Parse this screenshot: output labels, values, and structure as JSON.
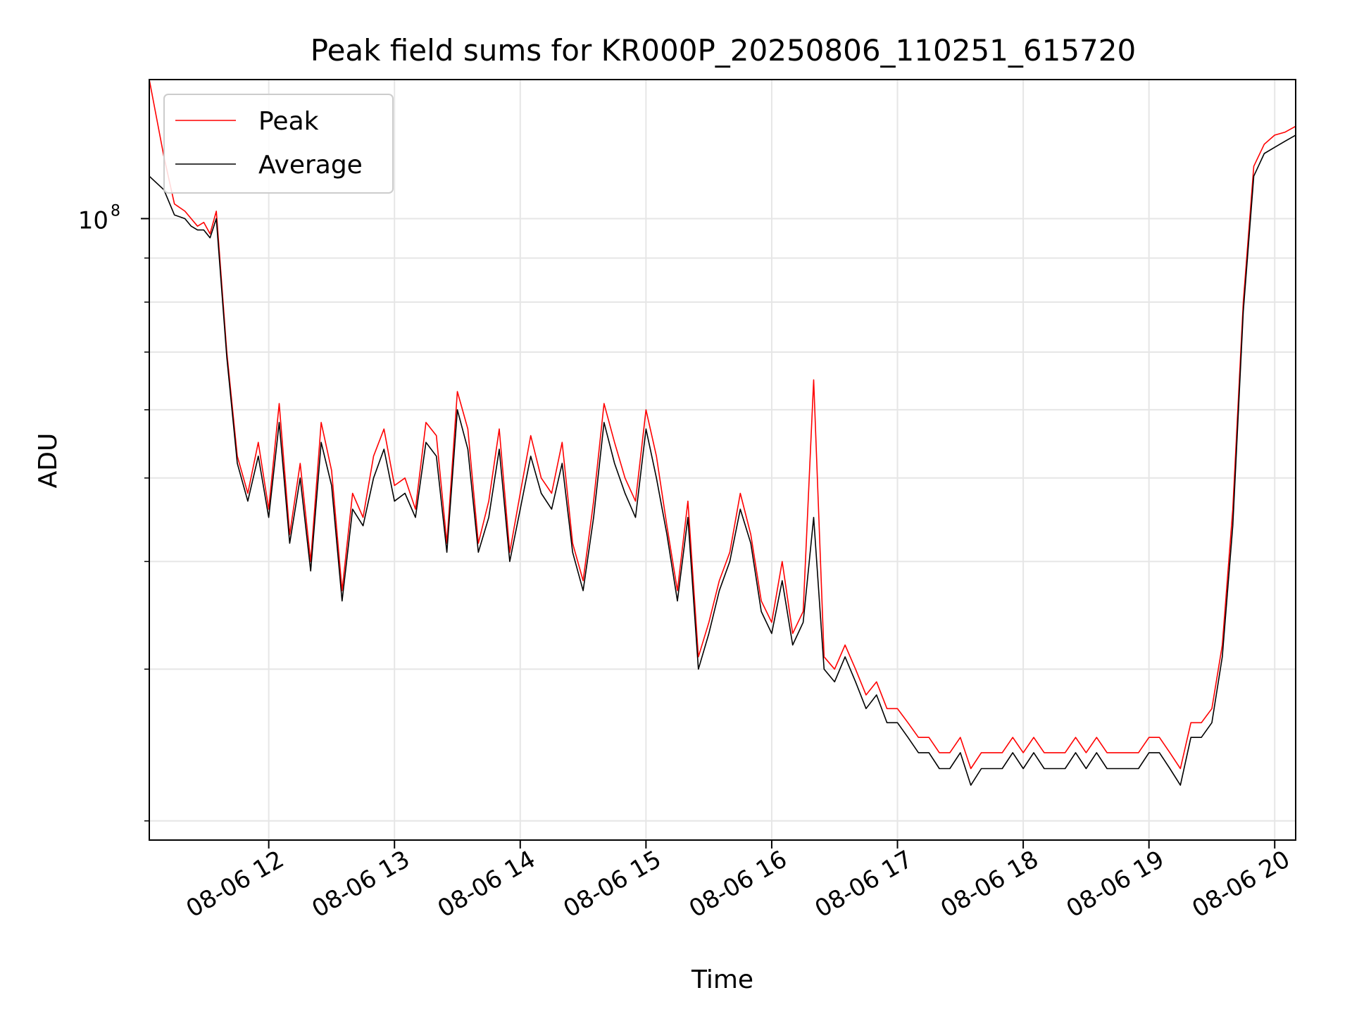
{
  "chart_data": {
    "type": "line",
    "title": "Peak field sums for KR000P_20250806_110251_615720",
    "xlabel": "Time",
    "ylabel": "ADU",
    "x_ticks": [
      "08-06 12",
      "08-06 13",
      "08-06 14",
      "08-06 15",
      "08-06 16",
      "08-06 17",
      "08-06 18",
      "08-06 19",
      "08-06 20"
    ],
    "y_ticks": [
      {
        "value": 100000000,
        "label": "10",
        "exponent": "8"
      }
    ],
    "y_scale": "log",
    "y_range": [
      19000000,
      145000000
    ],
    "grid": true,
    "legend_position": "upper-left",
    "colors": {
      "Peak": "#ff0000",
      "Average": "#000000"
    },
    "series": [
      {
        "name": "Peak",
        "x": [
          "11:03",
          "11:10",
          "11:15",
          "11:20",
          "11:23",
          "11:26",
          "11:29",
          "11:32",
          "11:35",
          "11:40",
          "11:45",
          "11:50",
          "11:55",
          "12:00",
          "12:05",
          "12:10",
          "12:15",
          "12:20",
          "12:25",
          "12:30",
          "12:35",
          "12:40",
          "12:45",
          "12:50",
          "12:55",
          "13:00",
          "13:05",
          "13:10",
          "13:15",
          "13:20",
          "13:25",
          "13:30",
          "13:35",
          "13:40",
          "13:45",
          "13:50",
          "13:55",
          "14:00",
          "14:05",
          "14:10",
          "14:15",
          "14:20",
          "14:25",
          "14:30",
          "14:35",
          "14:40",
          "14:45",
          "14:50",
          "14:55",
          "15:00",
          "15:05",
          "15:10",
          "15:15",
          "15:20",
          "15:25",
          "15:30",
          "15:35",
          "15:40",
          "15:45",
          "15:50",
          "15:55",
          "16:00",
          "16:05",
          "16:10",
          "16:15",
          "16:20",
          "16:25",
          "16:30",
          "16:35",
          "16:40",
          "16:45",
          "16:50",
          "16:55",
          "17:00",
          "17:05",
          "17:10",
          "17:15",
          "17:20",
          "17:25",
          "17:30",
          "17:35",
          "17:40",
          "17:45",
          "17:50",
          "17:55",
          "18:00",
          "18:05",
          "18:10",
          "18:15",
          "18:20",
          "18:25",
          "18:30",
          "18:35",
          "18:40",
          "18:45",
          "18:50",
          "18:55",
          "19:00",
          "19:05",
          "19:10",
          "19:15",
          "19:20",
          "19:25",
          "19:30",
          "19:35",
          "19:40",
          "19:45",
          "19:50",
          "19:55",
          "20:00",
          "20:05",
          "20:10"
        ],
        "values": [
          145,
          118,
          104,
          102,
          100,
          98,
          99,
          96,
          102,
          70,
          53,
          48,
          55,
          46,
          61,
          43,
          52,
          40,
          58,
          51,
          37,
          48,
          45,
          53,
          57,
          49,
          50,
          46,
          58,
          56,
          42,
          63,
          57,
          42,
          47,
          57,
          41,
          48,
          56,
          50,
          48,
          55,
          42,
          38,
          47,
          61,
          55,
          50,
          47,
          60,
          53,
          44,
          37,
          47,
          31,
          34,
          38,
          41,
          48,
          43,
          36,
          34,
          40,
          33,
          35,
          65,
          31,
          30,
          32,
          30,
          28,
          29,
          27,
          27,
          26,
          25,
          25,
          24,
          24,
          25,
          23,
          24,
          24,
          24,
          25,
          24,
          25,
          24,
          24,
          24,
          25,
          24,
          25,
          24,
          24,
          24,
          24,
          25,
          25,
          24,
          23,
          26,
          26,
          27,
          32,
          46,
          80,
          115,
          122,
          125,
          126,
          128
        ],
        "scale_note": "millions"
      },
      {
        "name": "Average",
        "x": [
          "11:03",
          "11:10",
          "11:15",
          "11:20",
          "11:23",
          "11:26",
          "11:29",
          "11:32",
          "11:35",
          "11:40",
          "11:45",
          "11:50",
          "11:55",
          "12:00",
          "12:05",
          "12:10",
          "12:15",
          "12:20",
          "12:25",
          "12:30",
          "12:35",
          "12:40",
          "12:45",
          "12:50",
          "12:55",
          "13:00",
          "13:05",
          "13:10",
          "13:15",
          "13:20",
          "13:25",
          "13:30",
          "13:35",
          "13:40",
          "13:45",
          "13:50",
          "13:55",
          "14:00",
          "14:05",
          "14:10",
          "14:15",
          "14:20",
          "14:25",
          "14:30",
          "14:35",
          "14:40",
          "14:45",
          "14:50",
          "14:55",
          "15:00",
          "15:05",
          "15:10",
          "15:15",
          "15:20",
          "15:25",
          "15:30",
          "15:35",
          "15:40",
          "15:45",
          "15:50",
          "15:55",
          "16:00",
          "16:05",
          "16:10",
          "16:15",
          "16:20",
          "16:25",
          "16:30",
          "16:35",
          "16:40",
          "16:45",
          "16:50",
          "16:55",
          "17:00",
          "17:05",
          "17:10",
          "17:15",
          "17:20",
          "17:25",
          "17:30",
          "17:35",
          "17:40",
          "17:45",
          "17:50",
          "17:55",
          "18:00",
          "18:05",
          "18:10",
          "18:15",
          "18:20",
          "18:25",
          "18:30",
          "18:35",
          "18:40",
          "18:45",
          "18:50",
          "18:55",
          "19:00",
          "19:05",
          "19:10",
          "19:15",
          "19:20",
          "19:25",
          "19:30",
          "19:35",
          "19:40",
          "19:45",
          "19:50",
          "19:55",
          "20:00",
          "20:05",
          "20:10"
        ],
        "values": [
          112,
          108,
          101,
          100,
          98,
          97,
          97,
          95,
          100,
          69,
          52,
          47,
          53,
          45,
          58,
          42,
          50,
          39,
          55,
          49,
          36,
          46,
          44,
          50,
          54,
          47,
          48,
          45,
          55,
          53,
          41,
          60,
          54,
          41,
          45,
          54,
          40,
          46,
          53,
          48,
          46,
          52,
          41,
          37,
          45,
          58,
          52,
          48,
          45,
          57,
          50,
          43,
          36,
          45,
          30,
          33,
          37,
          40,
          46,
          42,
          35,
          33,
          38,
          32,
          34,
          45,
          30,
          29,
          31,
          29,
          27,
          28,
          26,
          26,
          25,
          24,
          24,
          23,
          23,
          24,
          22,
          23,
          23,
          23,
          24,
          23,
          24,
          23,
          23,
          23,
          24,
          23,
          24,
          23,
          23,
          23,
          23,
          24,
          24,
          23,
          22,
          25,
          25,
          26,
          31,
          44,
          78,
          112,
          119,
          121,
          123,
          125
        ],
        "scale_note": "millions"
      }
    ]
  }
}
